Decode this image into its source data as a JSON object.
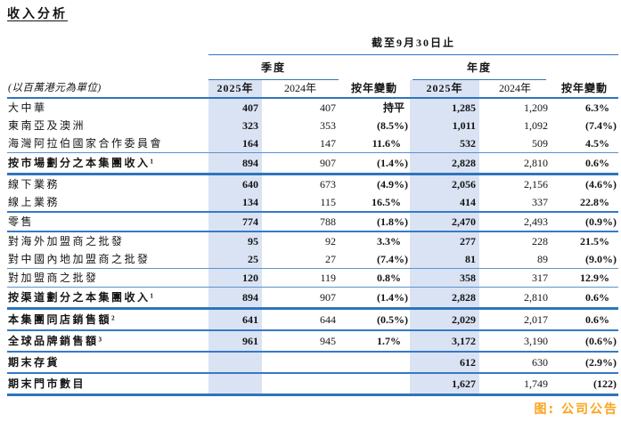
{
  "page": {
    "title": "收入分析",
    "source_note": "图: 公司公告"
  },
  "table": {
    "unit_label": "(以百萬港元為單位)",
    "period_header": "截至9月30日止",
    "groups": {
      "quarter": "季度",
      "year": "年度"
    },
    "columns": [
      "2025年",
      "2024年",
      "按年變動",
      "2025年",
      "2024年",
      "按年變動"
    ],
    "rows": [
      {
        "label": "大中華",
        "bold": false,
        "sep": "none",
        "cells": [
          "407",
          "407",
          "持平",
          "1,285",
          "1,209",
          "6.3%"
        ]
      },
      {
        "label": "東南亞及澳洲",
        "bold": false,
        "sep": "none",
        "cells": [
          "323",
          "353",
          "(8.5%)",
          "1,011",
          "1,092",
          "(7.4%)"
        ]
      },
      {
        "label": "海灣阿拉伯國家合作委員會",
        "bold": false,
        "sep": "thin",
        "cells": [
          "164",
          "147",
          "11.6%",
          "532",
          "509",
          "4.5%"
        ]
      },
      {
        "label": "按市場劃分之本集團收入¹",
        "bold": true,
        "sep": "thick",
        "cells": [
          "894",
          "907",
          "(1.4%)",
          "2,828",
          "2,810",
          "0.6%"
        ]
      },
      {
        "label": "線下業務",
        "bold": false,
        "sep": "none",
        "cells": [
          "640",
          "673",
          "(4.9%)",
          "2,056",
          "2,156",
          "(4.6%)"
        ]
      },
      {
        "label": "線上業務",
        "bold": false,
        "sep": "med",
        "cells": [
          "134",
          "115",
          "16.5%",
          "414",
          "337",
          "22.8%"
        ]
      },
      {
        "label": "零售",
        "bold": false,
        "sep": "med",
        "cells": [
          "774",
          "788",
          "(1.8%)",
          "2,470",
          "2,493",
          "(0.9%)"
        ]
      },
      {
        "label": "對海外加盟商之批發",
        "bold": false,
        "sep": "none",
        "cells": [
          "95",
          "92",
          "3.3%",
          "277",
          "228",
          "21.5%"
        ]
      },
      {
        "label": "對中國內地加盟商之批發",
        "bold": false,
        "sep": "thin",
        "cells": [
          "25",
          "27",
          "(7.4%)",
          "81",
          "89",
          "(9.0%)"
        ]
      },
      {
        "label": "對加盟商之批發",
        "bold": false,
        "sep": "thin",
        "cells": [
          "120",
          "119",
          "0.8%",
          "358",
          "317",
          "12.9%"
        ]
      },
      {
        "label": "按渠道劃分之本集團收入¹",
        "bold": true,
        "sep": "thick",
        "cells": [
          "894",
          "907",
          "(1.4%)",
          "2,828",
          "2,810",
          "0.6%"
        ]
      },
      {
        "label": "本集團同店銷售額²",
        "bold": true,
        "sep": "med",
        "cells": [
          "641",
          "644",
          "(0.5%)",
          "2,029",
          "2,017",
          "0.6%"
        ]
      },
      {
        "label": "全球品牌銷售額³",
        "bold": true,
        "sep": "med",
        "cells": [
          "961",
          "945",
          "1.7%",
          "3,172",
          "3,190",
          "(0.6%)"
        ]
      },
      {
        "label": "期末存貨",
        "bold": true,
        "sep": "med",
        "cells": [
          "",
          "",
          "",
          "612",
          "630",
          "(2.9%)"
        ]
      },
      {
        "label": "期末門市數目",
        "bold": true,
        "sep": "bottom",
        "cells": [
          "",
          "",
          "",
          "1,627",
          "1,749",
          "(122)"
        ]
      }
    ]
  },
  "colors": {
    "line_blue": "#2F74BE",
    "line_thin": "#5B94CE",
    "line_med": "#3679C6",
    "band_blue": "#DAE3F3",
    "source_orange": "#FBA41B"
  }
}
